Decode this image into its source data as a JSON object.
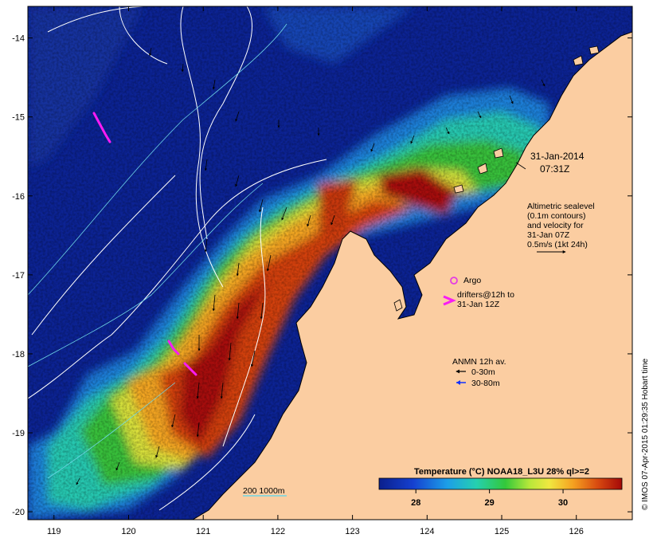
{
  "chart_data": {
    "type": "heatmap",
    "title": "",
    "x_ticks": [
      "119",
      "120",
      "121",
      "122",
      "123",
      "124",
      "125",
      "126"
    ],
    "y_ticks": [
      "-14",
      "-15",
      "-16",
      "-17",
      "-18",
      "-19",
      "-20"
    ],
    "xlim": [
      118.65,
      126.75
    ],
    "ylim": [
      -20.1,
      -13.6
    ],
    "colorbar": {
      "title": "Temperature (°C) NOAA18_L3U 28% ql>=2",
      "ticks": [
        "28",
        "29",
        "30"
      ],
      "range": [
        27.5,
        30.8
      ]
    }
  },
  "annotations": {
    "date": "31-Jan-2014",
    "time": "07:31Z",
    "altimetry_lines": [
      "Altimetric sealevel",
      "(0.1m contours)",
      "and velocity for",
      "31-Jan 07Z",
      "0.5m/s (1kt 24h)"
    ],
    "argo": "Argo",
    "drifters_lines": [
      "drifters@12h to",
      "31-Jan 12Z"
    ],
    "anmn_title": "ANMN 12h av.",
    "anmn_shallow": "0-30m",
    "anmn_deep": "30-80m",
    "scale_label": "200  1000m",
    "credit": "© IMOS 07-Apr-2015 01:29:35 Hobart time"
  },
  "colors": {
    "land": "#fbcda1",
    "ocean_deep": "#0b1f8c",
    "argo": "#e43ce3",
    "drifter": "#f81cf4",
    "anmn_deep": "#1030ff",
    "contour": "#ffffff"
  }
}
